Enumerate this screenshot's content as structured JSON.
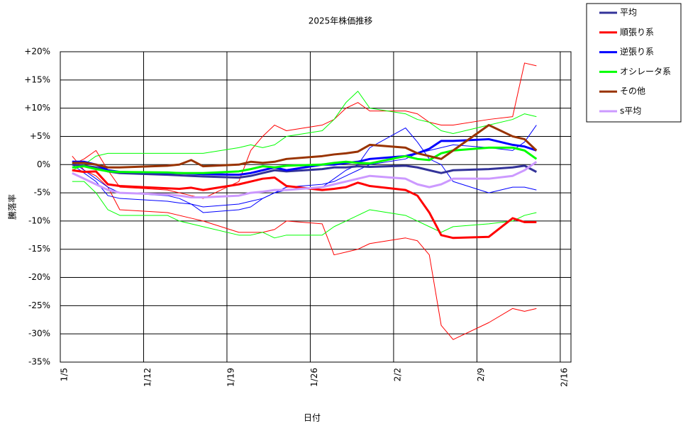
{
  "chart_data": {
    "type": "line",
    "title": "2025年株価推移",
    "x_label": "日付",
    "y_label": "騰落率",
    "x": [
      1,
      2,
      3,
      4,
      5,
      9,
      10,
      11,
      12,
      15,
      16,
      17,
      18,
      19,
      22,
      23,
      24,
      25,
      26,
      29,
      30,
      31,
      32,
      33,
      36,
      38,
      39,
      40
    ],
    "xlim": [
      0,
      42.9
    ],
    "xticks": [
      {
        "value": 0,
        "label": "1/5"
      },
      {
        "value": 7,
        "label": "1/12"
      },
      {
        "value": 14,
        "label": "1/19"
      },
      {
        "value": 21,
        "label": "1/26"
      },
      {
        "value": 28,
        "label": "2/2"
      },
      {
        "value": 35,
        "label": "2/9"
      },
      {
        "value": 42,
        "label": "2/16"
      }
    ],
    "ylim": [
      -35,
      20
    ],
    "yticks": [
      {
        "value": -35,
        "label": "-35%"
      },
      {
        "value": -30,
        "label": "-30%"
      },
      {
        "value": -25,
        "label": "-25%"
      },
      {
        "value": -20,
        "label": "-20%"
      },
      {
        "value": -15,
        "label": "-15%"
      },
      {
        "value": -10,
        "label": "-10%"
      },
      {
        "value": -5,
        "label": "-5%"
      },
      {
        "value": 0,
        "label": "0%"
      },
      {
        "value": 5,
        "label": "+5%"
      },
      {
        "value": 10,
        "label": "+10%"
      },
      {
        "value": 15,
        "label": "+15%"
      },
      {
        "value": 20,
        "label": "+20%"
      }
    ],
    "grid": true,
    "legend": "outside-right",
    "series": [
      {
        "color": "#ff0000",
        "width": 1,
        "values": [
          1.5,
          -1,
          -2,
          -4,
          -8,
          -8.5,
          -9,
          -9.5,
          -10,
          -12,
          -12,
          -12,
          -11.5,
          -10,
          -10.5,
          -16,
          -15.5,
          -15,
          -14,
          -13,
          -13.5,
          -16,
          -28.5,
          -31,
          -28,
          -25.5,
          -26,
          -25.5
        ]
      },
      {
        "color": "#ff0000",
        "width": 1,
        "values": [
          0,
          1,
          2.5,
          -1,
          -4,
          -4.5,
          -5,
          -5.5,
          -6,
          -3,
          2.5,
          5,
          7,
          6,
          7,
          8,
          10,
          11,
          9.5,
          9.5,
          9,
          7.5,
          7,
          7,
          8,
          8.5,
          18,
          17.5
        ]
      },
      {
        "color": "#0000ff",
        "width": 1,
        "values": [
          0.5,
          -1,
          -2.5,
          -4,
          -5,
          -5.5,
          -6,
          -7,
          -8.5,
          -8,
          -7.5,
          -6,
          -5,
          -4.5,
          -4,
          -2.5,
          -1,
          0,
          3,
          6.5,
          4,
          1,
          0,
          -3,
          -5,
          -4,
          -4,
          -4.5
        ]
      },
      {
        "color": "#0000ff",
        "width": 1,
        "values": [
          0,
          -1.5,
          -3,
          -5.5,
          -6,
          -6.5,
          -6.8,
          -7,
          -7.5,
          -7,
          -6.5,
          -6,
          -5,
          -4,
          -3.5,
          -3,
          -2,
          -1,
          0,
          1,
          2,
          2.5,
          3,
          3.5,
          3,
          2.5,
          4,
          7
        ]
      },
      {
        "color": "#00ff00",
        "width": 1,
        "values": [
          -1,
          0,
          1.5,
          2,
          2,
          2,
          2,
          2,
          2,
          3,
          3.5,
          3,
          3.5,
          5,
          6,
          8,
          11,
          13,
          10,
          9,
          8,
          7.5,
          6,
          5.5,
          7,
          8,
          9,
          8.5
        ]
      },
      {
        "color": "#00ff00",
        "width": 1,
        "values": [
          -3,
          -3,
          -5,
          -8,
          -9,
          -9,
          -10,
          -10.5,
          -11,
          -12.5,
          -12.5,
          -12,
          -13,
          -12.5,
          -12.5,
          -11,
          -10,
          -9,
          -8,
          -9,
          -10,
          -11,
          -12,
          -11,
          -10.5,
          -10,
          -9,
          -8.5
        ]
      },
      {
        "name": "平均",
        "color": "#333399",
        "width": 3,
        "values": [
          0,
          -0.2,
          -0.5,
          -1.2,
          -1.5,
          -1.8,
          -1.9,
          -2,
          -2.1,
          -2.3,
          -2,
          -1.5,
          -1,
          -1.2,
          -0.8,
          -0.5,
          -0.5,
          -0.3,
          -0.4,
          -0.2,
          -0.5,
          -1,
          -1.5,
          -1,
          -0.8,
          -0.5,
          -0.2,
          -1.3
        ]
      },
      {
        "name": "順張り系",
        "color": "#ff0000",
        "width": 3,
        "values": [
          -1,
          -1.3,
          -1.2,
          -3.5,
          -3.8,
          -4.2,
          -4.3,
          -4.1,
          -4.5,
          -3.5,
          -3,
          -2.5,
          -2.3,
          -3.8,
          -4.5,
          -4.3,
          -4,
          -3.2,
          -3.8,
          -4.5,
          -5.5,
          -8.5,
          -12.5,
          -13,
          -12.8,
          -9.5,
          -10.2,
          -10.2
        ]
      },
      {
        "name": "逆張り系",
        "color": "#0000ff",
        "width": 3,
        "values": [
          0.5,
          0.5,
          0,
          -1,
          -1.3,
          -1.5,
          -1.5,
          -1.6,
          -1.7,
          -1.8,
          -1.5,
          -1,
          -0.5,
          -1,
          0,
          0,
          0.3,
          0.5,
          1,
          1.5,
          2,
          2.8,
          4.2,
          4.2,
          4.5,
          3.5,
          3.2,
          2.5
        ]
      },
      {
        "name": "オシレータ系",
        "color": "#00ff00",
        "width": 3,
        "values": [
          -0.5,
          -0.3,
          -0.8,
          -1.2,
          -1.3,
          -1.4,
          -1.5,
          -1.5,
          -1.5,
          -1.2,
          -0.8,
          -0.3,
          -0.5,
          -0.2,
          0,
          0.3,
          0.5,
          0.3,
          0.2,
          1.5,
          1,
          0.8,
          2,
          2.5,
          3,
          3,
          2.5,
          1
        ]
      },
      {
        "name": "その他",
        "color": "#993300",
        "width": 3,
        "values": [
          0.3,
          0.3,
          0,
          -0.5,
          -0.5,
          -0.2,
          0,
          0.8,
          -0.3,
          0,
          0.5,
          0.3,
          0.5,
          1,
          1.5,
          1.8,
          2,
          2.3,
          3.5,
          3,
          2,
          1.5,
          1,
          2.5,
          7,
          5,
          4.5,
          2.5
        ]
      },
      {
        "name": "s平均",
        "color": "#cc99ff",
        "width": 3,
        "values": [
          -1.5,
          -2.5,
          -3.5,
          -4.5,
          -5,
          -5.3,
          -5.5,
          -5.8,
          -5.8,
          -5.5,
          -5,
          -4.8,
          -4.5,
          -4.5,
          -4,
          -3.5,
          -3,
          -2.5,
          -2,
          -2.5,
          -3.5,
          -4,
          -3.5,
          -2.5,
          -2.5,
          -2,
          -1,
          0.5
        ]
      }
    ]
  }
}
